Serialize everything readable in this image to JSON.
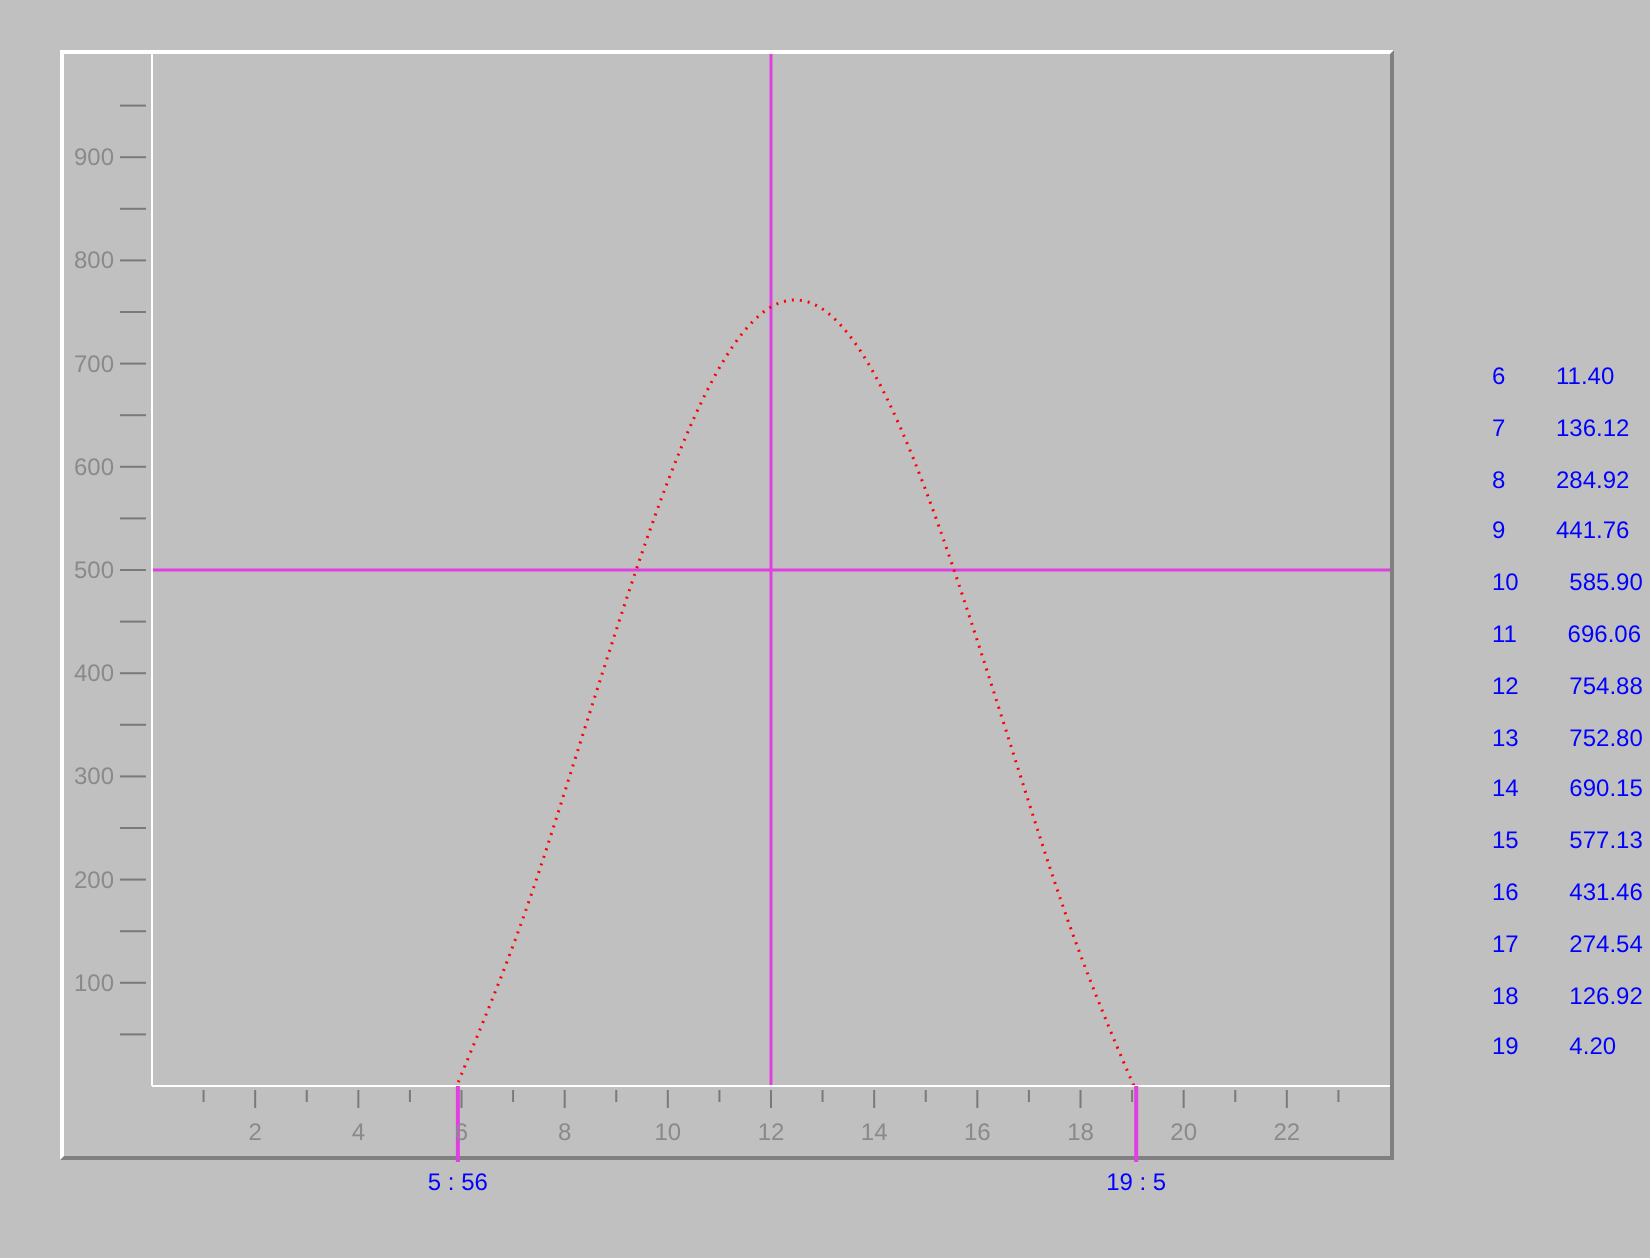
{
  "chart_data": [
    {
      "type": "line",
      "x": [
        5.93,
        6,
        7,
        8,
        9,
        10,
        11,
        12,
        13,
        14,
        15,
        16,
        17,
        18,
        19,
        19.08
      ],
      "values": [
        0,
        11.4,
        136.12,
        284.92,
        441.76,
        585.9,
        696.06,
        754.88,
        752.8,
        690.15,
        577.13,
        431.46,
        274.54,
        126.92,
        4.2,
        0
      ],
      "color": "#ff0000",
      "line_style": "dotted",
      "marker": "none",
      "xlim": [
        0,
        24
      ],
      "xticks": [
        {
          "value": 1,
          "label": null
        },
        2,
        {
          "value": 3,
          "label": null
        },
        4,
        {
          "value": 5,
          "label": null
        },
        6,
        {
          "value": 7,
          "label": null
        },
        8,
        {
          "value": 9,
          "label": null
        },
        10,
        {
          "value": 11,
          "label": null
        },
        12,
        {
          "value": 13,
          "label": null
        },
        14,
        {
          "value": 15,
          "label": null
        },
        16,
        {
          "value": 17,
          "label": null
        },
        18,
        {
          "value": 19,
          "label": null
        },
        20,
        {
          "value": 21,
          "label": null
        },
        22,
        {
          "value": 23,
          "label": null
        }
      ],
      "ylim": [
        0,
        1000
      ],
      "yticks": [
        {
          "value": 50,
          "label": null
        },
        100,
        {
          "value": 150,
          "label": null
        },
        200,
        {
          "value": 250,
          "label": null
        },
        300,
        {
          "value": 350,
          "label": null
        },
        400,
        {
          "value": 450,
          "label": null
        },
        500,
        {
          "value": 550,
          "label": null
        },
        600,
        {
          "value": 650,
          "label": null
        },
        700,
        {
          "value": 750,
          "label": null
        },
        800,
        {
          "value": 850,
          "label": null
        },
        900,
        {
          "value": 950,
          "label": null
        }
      ],
      "ref_lines": [
        {
          "axis": "x",
          "value": 12,
          "color": "#e040e0"
        },
        {
          "axis": "y",
          "value": 500,
          "color": "#e040e0"
        }
      ],
      "annotations": [
        {
          "text": "5 : 56",
          "x": 5.93,
          "y": 0
        },
        {
          "text": "19 : 5",
          "x": 19.08,
          "y": 0
        }
      ]
    },
    {
      "type": "other",
      "annotations": [
        "6 11.40",
        "7 136.12",
        "8 284.92",
        "9 441.76",
        "10 585.90",
        "11 696.06",
        "12 754.88",
        "13 752.80",
        "14 690.15",
        "15 577.13",
        "16 431.46",
        "17 274.54",
        "18 126.92",
        "19 4.20"
      ]
    }
  ]
}
